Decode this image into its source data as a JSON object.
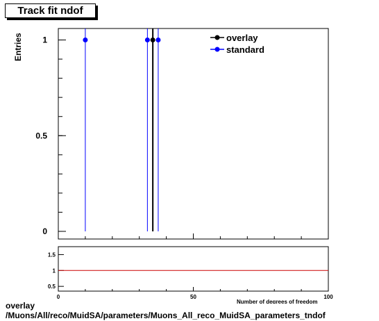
{
  "title": "Track fit ndof",
  "footer": {
    "line1": "overlay",
    "line2": "/Muons/All/reco/MuidSA/parameters/Muons_All_reco_MuidSA_parameters_tndof"
  },
  "chart_data": [
    {
      "type": "scatter",
      "title": "Track fit ndof",
      "ylabel": "Entries",
      "xlabel": "",
      "xlim": [
        0,
        100
      ],
      "ylim": [
        -0.04,
        1.06
      ],
      "yticks": [
        0,
        0.5,
        1
      ],
      "ytick_labels": [
        "0",
        "0.5",
        "1"
      ],
      "legend": "top-right",
      "colors": {
        "overlay": "#000000",
        "standard": "#0000ff"
      },
      "series": [
        {
          "name": "overlay",
          "x": [
            35
          ],
          "y": [
            1
          ]
        },
        {
          "name": "standard",
          "x": [
            10,
            33,
            37
          ],
          "y": [
            1,
            1,
            1
          ]
        }
      ]
    },
    {
      "type": "line",
      "xlabel": "Number of degrees of freedom",
      "xlim": [
        0,
        100
      ],
      "xticks": [
        0,
        50,
        100
      ],
      "xtick_labels": [
        "0",
        "50",
        "100"
      ],
      "ylim": [
        0.35,
        1.75
      ],
      "yticks": [
        0.5,
        1,
        1.5
      ],
      "ytick_labels": [
        "0.5",
        "1",
        "1.5"
      ],
      "ratio_line": {
        "y": 1,
        "color": "#cc0000"
      }
    }
  ]
}
